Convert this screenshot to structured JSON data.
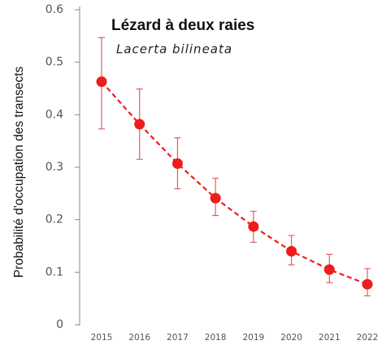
{
  "chart_data": {
    "type": "line",
    "title": "Lézard à deux raies",
    "subtitle": "Lacerta bilineata",
    "y_label": "Probabilité d'occupation des transects",
    "categories": [
      "2015",
      "2016",
      "2017",
      "2018",
      "2019",
      "2020",
      "2021",
      "2022"
    ],
    "series": [
      {
        "color": "#ee1c1c",
        "error_color": "#e06060",
        "values": [
          0.463,
          0.382,
          0.307,
          0.241,
          0.187,
          0.14,
          0.105,
          0.077
        ],
        "ci_low": [
          0.373,
          0.315,
          0.259,
          0.208,
          0.157,
          0.114,
          0.08,
          0.055
        ],
        "ci_high": [
          0.547,
          0.449,
          0.356,
          0.279,
          0.216,
          0.17,
          0.134,
          0.107
        ]
      }
    ],
    "ylim": [
      0,
      0.6
    ],
    "yticks": [
      0,
      0.1,
      0.2,
      0.3,
      0.4,
      0.5,
      0.6
    ],
    "line_style": "dashed"
  }
}
